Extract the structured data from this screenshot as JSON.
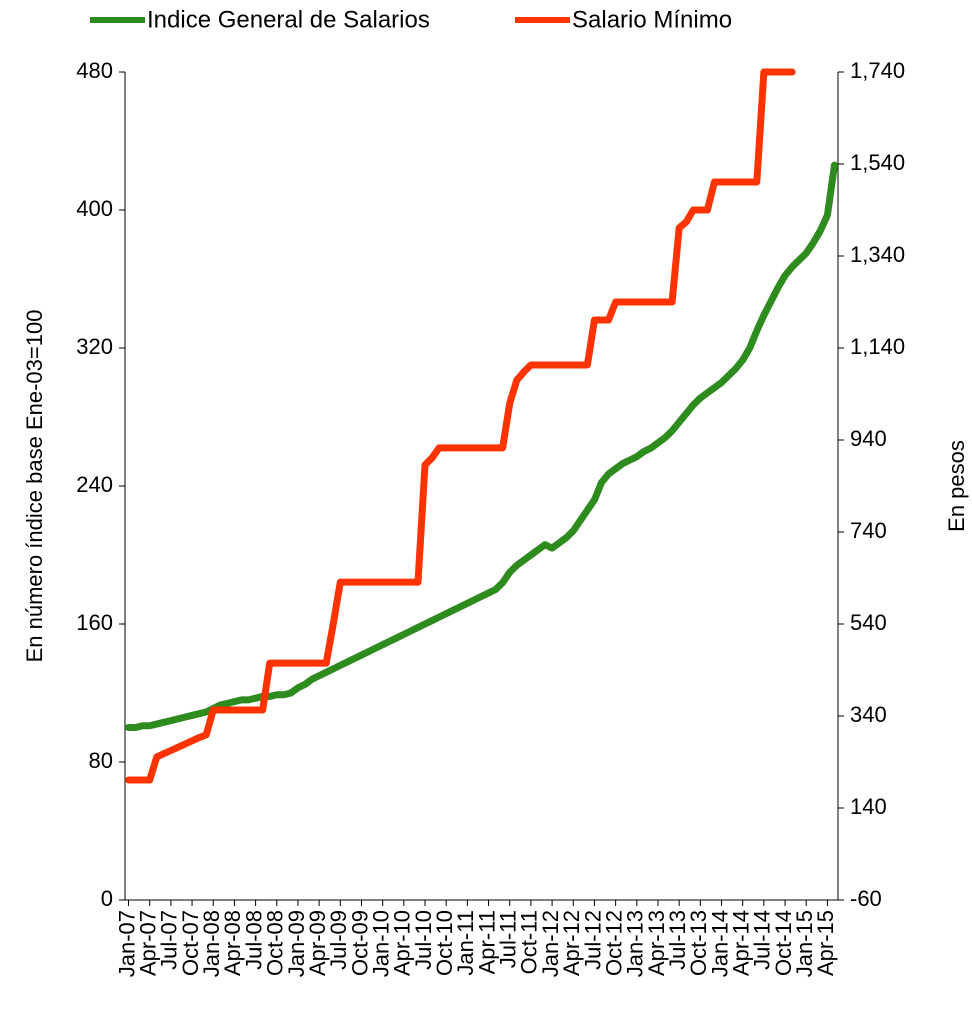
{
  "chart_data": {
    "type": "line",
    "categories": [
      "Jan-07",
      null,
      null,
      "Apr-07",
      null,
      null,
      "Jul-07",
      null,
      null,
      "Oct-07",
      null,
      null,
      "Jan-08",
      null,
      null,
      "Apr-08",
      null,
      null,
      "Jul-08",
      null,
      null,
      "Oct-08",
      null,
      null,
      "Jan-09",
      null,
      null,
      "Apr-09",
      null,
      null,
      "Jul-09",
      null,
      null,
      "Oct-09",
      null,
      null,
      "Jan-10",
      null,
      null,
      "Apr-10",
      null,
      null,
      "Jul-10",
      null,
      null,
      "Oct-10",
      null,
      null,
      "Jan-11",
      null,
      null,
      "Apr-11",
      null,
      null,
      "Jul-11",
      null,
      null,
      "Oct-11",
      null,
      null,
      "Jan-12",
      null,
      null,
      "Apr-12",
      null,
      null,
      "Jul-12",
      null,
      null,
      "Oct-12",
      null,
      null,
      "Jan-13",
      null,
      null,
      "Apr-13",
      null,
      null,
      "Jul-13",
      null,
      null,
      "Oct-13",
      null,
      null,
      "Jan-14",
      null,
      null,
      "Apr-14",
      null,
      null,
      "Jul-14",
      null,
      null,
      "Oct-14",
      null,
      null,
      "Jan-15",
      null,
      null,
      "Apr-15",
      null
    ],
    "series": [
      {
        "name": "Indice General de Salarios",
        "color": "#2e8b1e",
        "axis": "y",
        "values": [
          100,
          100,
          101,
          101,
          102,
          103,
          104,
          105,
          106,
          107,
          108,
          109,
          111,
          113,
          114,
          115,
          116,
          116,
          117,
          118,
          118,
          119,
          119,
          120,
          123,
          125,
          128,
          130,
          132,
          134,
          136,
          138,
          140,
          142,
          144,
          146,
          148,
          150,
          152,
          154,
          156,
          158,
          160,
          162,
          164,
          166,
          168,
          170,
          172,
          174,
          176,
          178,
          180,
          184,
          190,
          194,
          197,
          200,
          203,
          206,
          204,
          207,
          210,
          214,
          220,
          226,
          232,
          242,
          247,
          250,
          253,
          255,
          257,
          260,
          262,
          265,
          268,
          272,
          277,
          282,
          287,
          291,
          294,
          297,
          300,
          304,
          308,
          313,
          320,
          330,
          339,
          347,
          355,
          362,
          367,
          371,
          375,
          381,
          388,
          397,
          426
        ]
      },
      {
        "name": "Salario Mínimo",
        "color": "#ff3300",
        "axis": "y2",
        "values": [
          201,
          201,
          201,
          201,
          251,
          258,
          265,
          272,
          279,
          286,
          293,
          299,
          353,
          353,
          353,
          353,
          353,
          353,
          353,
          353,
          455,
          455,
          455,
          455,
          455,
          455,
          455,
          455,
          455,
          540,
          631,
          631,
          631,
          631,
          631,
          631,
          631,
          631,
          631,
          631,
          631,
          631,
          886,
          901,
          923,
          923,
          923,
          923,
          923,
          923,
          923,
          923,
          923,
          923,
          1020,
          1070,
          1088,
          1103,
          1103,
          1103,
          1103,
          1103,
          1103,
          1103,
          1103,
          1103,
          1201,
          1201,
          1201,
          1240,
          1240,
          1240,
          1240,
          1240,
          1240,
          1240,
          1240,
          1240,
          1401,
          1414,
          1440,
          1440,
          1440,
          1501,
          1501,
          1501,
          1501,
          1501,
          1501,
          1501,
          1740,
          1740,
          1740,
          1740,
          1740,
          null,
          null,
          null,
          null,
          null,
          null
        ]
      }
    ],
    "y_label": "En número índice base Ene-03=100",
    "y2_label": "En pesos",
    "ylim": [
      0,
      480
    ],
    "yticks": [
      0,
      80,
      160,
      240,
      320,
      400,
      480
    ],
    "y2lim": [
      -60,
      1740
    ],
    "y2ticks": [
      -60,
      140,
      340,
      540,
      740,
      940,
      {
        "value": 1140,
        "label": "1,140"
      },
      {
        "value": 1340,
        "label": "1,340"
      },
      {
        "value": 1540,
        "label": "1,540"
      },
      {
        "value": 1740,
        "label": "1,740"
      }
    ],
    "legend": "top",
    "grid": false
  }
}
